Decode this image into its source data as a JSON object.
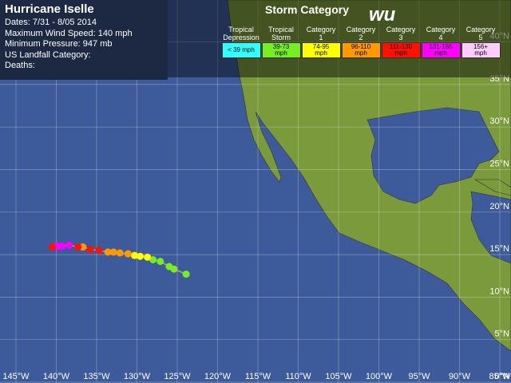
{
  "header": {
    "title": "Hurricane Iselle",
    "details": [
      "Dates: 7/31 - 8/05 2014",
      "Maximum Wind Speed: 140 mph",
      "Minimum Pressure: 947 mb",
      "US Landfall Category:",
      "Deaths:"
    ]
  },
  "legend": {
    "title": "Storm Category",
    "logo": "wu",
    "items": [
      {
        "name": "Tropical Depression",
        "range": "< 39 mph",
        "color": "#33ffff"
      },
      {
        "name": "Tropical Storm",
        "range": "39-73 mph",
        "color": "#77ee22"
      },
      {
        "name": "Category 1",
        "range": "74-95 mph",
        "color": "#ffff00"
      },
      {
        "name": "Category 2",
        "range": "96-110 mph",
        "color": "#ff9900"
      },
      {
        "name": "Category 3",
        "range": "111-130 mph",
        "color": "#ff1100"
      },
      {
        "name": "Category 4",
        "range": "131-155 mph",
        "color": "#ff00ff"
      },
      {
        "name": "Category 5",
        "range": "156+ mph",
        "color": "#ffccff"
      }
    ]
  },
  "map": {
    "lon_ticks": [
      {
        "value": -145,
        "label": "145°W"
      },
      {
        "value": -140,
        "label": "140°W"
      },
      {
        "value": -135,
        "label": "135°W"
      },
      {
        "value": -130,
        "label": "130°W"
      },
      {
        "value": -125,
        "label": "125°W"
      },
      {
        "value": -120,
        "label": "120°W"
      },
      {
        "value": -115,
        "label": "115°W"
      },
      {
        "value": -110,
        "label": "110°W"
      },
      {
        "value": -105,
        "label": "105°W"
      },
      {
        "value": -100,
        "label": "100°W"
      },
      {
        "value": -95,
        "label": "95°W"
      },
      {
        "value": -90,
        "label": "90°W"
      },
      {
        "value": -85,
        "label": "85°W"
      }
    ],
    "lat_ticks": [
      {
        "value": 40,
        "label": "40°N"
      },
      {
        "value": 35,
        "label": "35°N"
      },
      {
        "value": 30,
        "label": "30°N"
      },
      {
        "value": 25,
        "label": "25°N"
      },
      {
        "value": 20,
        "label": "20°N"
      },
      {
        "value": 15,
        "label": "15°N"
      },
      {
        "value": 10,
        "label": "10°N"
      },
      {
        "value": 5,
        "label": "5°N"
      },
      {
        "value": 0,
        "label": "0°N"
      }
    ],
    "track": [
      {
        "lon": -123.9,
        "lat": 12.7,
        "category": 1
      },
      {
        "lon": -125.4,
        "lat": 13.3,
        "category": 1
      },
      {
        "lon": -126.0,
        "lat": 13.6,
        "category": 1
      },
      {
        "lon": -127.1,
        "lat": 14.2,
        "category": 1
      },
      {
        "lon": -128.0,
        "lat": 14.4,
        "category": 1
      },
      {
        "lon": -128.7,
        "lat": 14.7,
        "category": 2
      },
      {
        "lon": -129.6,
        "lat": 14.8,
        "category": 2
      },
      {
        "lon": -130.3,
        "lat": 14.9,
        "category": 2
      },
      {
        "lon": -131.1,
        "lat": 15.1,
        "category": 3
      },
      {
        "lon": -132.1,
        "lat": 15.2,
        "category": 3
      },
      {
        "lon": -132.9,
        "lat": 15.3,
        "category": 3
      },
      {
        "lon": -133.6,
        "lat": 15.3,
        "category": 3
      },
      {
        "lon": -134.7,
        "lat": 15.5,
        "category": 4
      },
      {
        "lon": -135.8,
        "lat": 15.6,
        "category": 4
      },
      {
        "lon": -136.7,
        "lat": 15.9,
        "category": 3
      },
      {
        "lon": -137.3,
        "lat": 15.9,
        "category": 4
      },
      {
        "lon": -138.4,
        "lat": 16.1,
        "category": 5
      },
      {
        "lon": -139.3,
        "lat": 16.0,
        "category": 5
      },
      {
        "lon": -139.9,
        "lat": 16.0,
        "category": 5
      },
      {
        "lon": -140.5,
        "lat": 15.9,
        "category": 4
      }
    ]
  }
}
